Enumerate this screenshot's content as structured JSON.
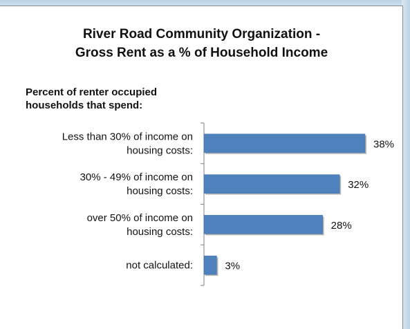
{
  "chart_data": {
    "type": "bar",
    "orientation": "horizontal",
    "title": [
      "River Road Community Organization -",
      "Gross Rent as a % of Household Income"
    ],
    "subtitle": [
      "Percent of renter occupied",
      "households that spend:"
    ],
    "categories": [
      [
        "Less than 30% of income on",
        "housing costs:"
      ],
      [
        "30% - 49% of income on",
        "housing costs:"
      ],
      [
        "over 50% of income on",
        "housing costs:"
      ],
      [
        "not calculated:"
      ]
    ],
    "values": [
      38,
      32,
      28,
      3
    ],
    "data_labels": [
      "38%",
      "32%",
      "28%",
      "3%"
    ],
    "xlim": [
      0,
      38
    ],
    "bar_color": "#4f81bd",
    "grid": false,
    "legend": "none"
  }
}
